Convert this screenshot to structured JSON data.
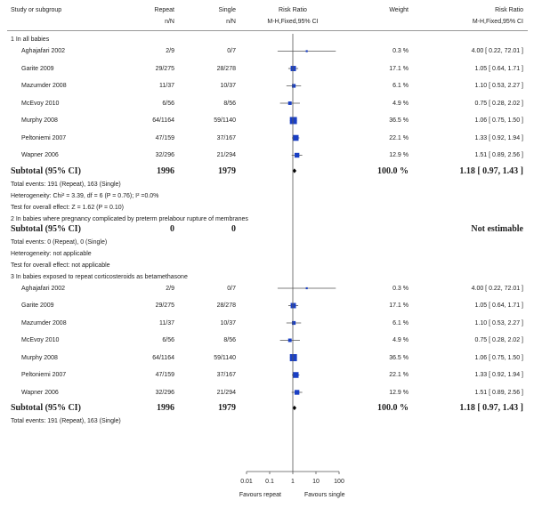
{
  "header": {
    "study": "Study or subgroup",
    "col1": "Repeat",
    "col1_sub": "n/N",
    "col2": "Single",
    "col2_sub": "n/N",
    "rr": "Risk Ratio",
    "rr_sub": "M-H,Fixed,95% CI",
    "weight": "Weight",
    "rr2": "Risk Ratio",
    "rr2_sub": "M-H,Fixed,95% CI"
  },
  "groups": [
    {
      "title": "1 In all babies",
      "studies": [
        {
          "name": "Aghajafari 2002",
          "e1": "2/9",
          "e2": "0/7",
          "weight": "0.3 %",
          "ci": "4.00 [ 0.22, 72.01 ]",
          "rr": 4.0,
          "lo": 0.22,
          "hi": 72.01,
          "w": 0.3
        },
        {
          "name": "Garite 2009",
          "e1": "29/275",
          "e2": "28/278",
          "weight": "17.1 %",
          "ci": "1.05 [ 0.64, 1.71 ]",
          "rr": 1.05,
          "lo": 0.64,
          "hi": 1.71,
          "w": 17.1
        },
        {
          "name": "Mazumder 2008",
          "e1": "11/37",
          "e2": "10/37",
          "weight": "6.1 %",
          "ci": "1.10 [ 0.53, 2.27 ]",
          "rr": 1.1,
          "lo": 0.53,
          "hi": 2.27,
          "w": 6.1
        },
        {
          "name": "McEvoy 2010",
          "e1": "6/56",
          "e2": "8/56",
          "weight": "4.9 %",
          "ci": "0.75 [ 0.28, 2.02 ]",
          "rr": 0.75,
          "lo": 0.28,
          "hi": 2.02,
          "w": 4.9
        },
        {
          "name": "Murphy 2008",
          "e1": "64/1164",
          "e2": "59/1140",
          "weight": "36.5 %",
          "ci": "1.06 [ 0.75, 1.50 ]",
          "rr": 1.06,
          "lo": 0.75,
          "hi": 1.5,
          "w": 36.5
        },
        {
          "name": "Peltoniemi 2007",
          "e1": "47/159",
          "e2": "37/167",
          "weight": "22.1 %",
          "ci": "1.33 [ 0.92, 1.94 ]",
          "rr": 1.33,
          "lo": 0.92,
          "hi": 1.94,
          "w": 22.1
        },
        {
          "name": "Wapner 2006",
          "e1": "32/296",
          "e2": "21/294",
          "weight": "12.9 %",
          "ci": "1.51 [ 0.89, 2.56 ]",
          "rr": 1.51,
          "lo": 0.89,
          "hi": 2.56,
          "w": 12.9
        }
      ],
      "subtotal": {
        "label": "Subtotal (95% CI)",
        "n1": "1996",
        "n2": "1979",
        "weight": "100.0 %",
        "ci": "1.18 [ 0.97, 1.43 ]",
        "rr": 1.18,
        "lo": 0.97,
        "hi": 1.43
      },
      "notes": [
        "Total events: 191 (Repeat), 163 (Single)",
        "Heterogeneity: Chi² = 3.39, df = 6 (P = 0.76); I² =0.0%",
        "Test for overall effect: Z = 1.62 (P = 0.10)"
      ]
    },
    {
      "title": "2 In babies where pregnancy complicated by preterm prelabour rupture of membranes",
      "studies": [],
      "subtotal": {
        "label": "Subtotal (95% CI)",
        "n1": "0",
        "n2": "0",
        "weight": "",
        "ci": "Not estimable",
        "rr": null,
        "lo": null,
        "hi": null
      },
      "notes": [
        "Total events: 0 (Repeat), 0 (Single)",
        "Heterogeneity: not applicable",
        "Test for overall effect: not applicable"
      ]
    },
    {
      "title": "3 In babies exposed to repeat corticosteroids as betamethasone",
      "studies": [
        {
          "name": "Aghajafari 2002",
          "e1": "2/9",
          "e2": "0/7",
          "weight": "0.3 %",
          "ci": "4.00 [ 0.22, 72.01 ]",
          "rr": 4.0,
          "lo": 0.22,
          "hi": 72.01,
          "w": 0.3
        },
        {
          "name": "Garite 2009",
          "e1": "29/275",
          "e2": "28/278",
          "weight": "17.1 %",
          "ci": "1.05 [ 0.64, 1.71 ]",
          "rr": 1.05,
          "lo": 0.64,
          "hi": 1.71,
          "w": 17.1
        },
        {
          "name": "Mazumder 2008",
          "e1": "11/37",
          "e2": "10/37",
          "weight": "6.1 %",
          "ci": "1.10 [ 0.53, 2.27 ]",
          "rr": 1.1,
          "lo": 0.53,
          "hi": 2.27,
          "w": 6.1
        },
        {
          "name": "McEvoy 2010",
          "e1": "6/56",
          "e2": "8/56",
          "weight": "4.9 %",
          "ci": "0.75 [ 0.28, 2.02 ]",
          "rr": 0.75,
          "lo": 0.28,
          "hi": 2.02,
          "w": 4.9
        },
        {
          "name": "Murphy 2008",
          "e1": "64/1164",
          "e2": "59/1140",
          "weight": "36.5 %",
          "ci": "1.06 [ 0.75, 1.50 ]",
          "rr": 1.06,
          "lo": 0.75,
          "hi": 1.5,
          "w": 36.5
        },
        {
          "name": "Peltoniemi 2007",
          "e1": "47/159",
          "e2": "37/167",
          "weight": "22.1 %",
          "ci": "1.33 [ 0.92, 1.94 ]",
          "rr": 1.33,
          "lo": 0.92,
          "hi": 1.94,
          "w": 22.1
        },
        {
          "name": "Wapner 2006",
          "e1": "32/296",
          "e2": "21/294",
          "weight": "12.9 %",
          "ci": "1.51 [ 0.89, 2.56 ]",
          "rr": 1.51,
          "lo": 0.89,
          "hi": 2.56,
          "w": 12.9
        }
      ],
      "subtotal": {
        "label": "Subtotal (95% CI)",
        "n1": "1996",
        "n2": "1979",
        "weight": "100.0 %",
        "ci": "1.18 [ 0.97, 1.43 ]",
        "rr": 1.18,
        "lo": 0.97,
        "hi": 1.43
      },
      "notes": [
        "Total events: 191 (Repeat), 163 (Single)"
      ]
    }
  ],
  "chart_data": {
    "type": "forest",
    "scale": "log",
    "xlim": [
      0.01,
      100
    ],
    "ticks": [
      "0.01",
      "0.1",
      "1",
      "10",
      "100"
    ],
    "tick_values": [
      0.01,
      0.1,
      1,
      10,
      100
    ],
    "left_label": "Favours repeat",
    "right_label": "Favours single",
    "null_line": 1,
    "marker_color": "#1a3fc4",
    "line_color": "#555555"
  }
}
